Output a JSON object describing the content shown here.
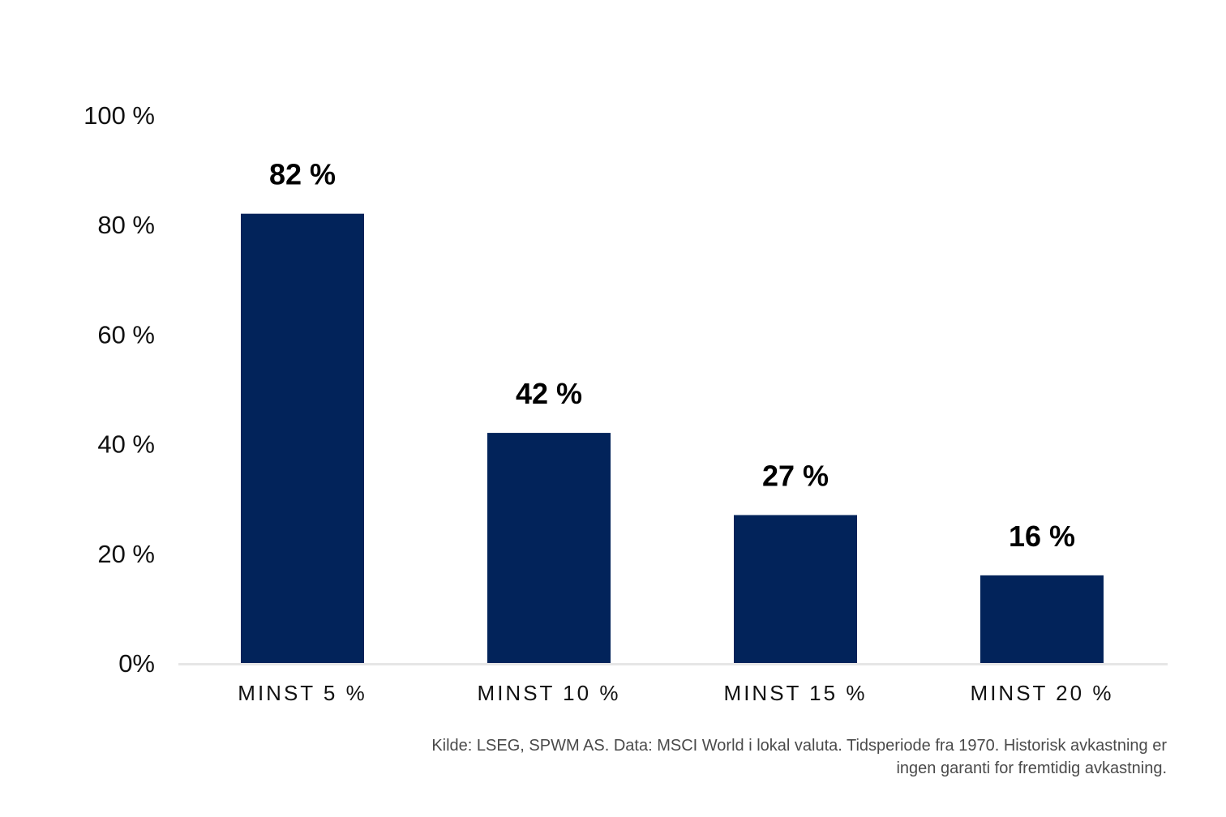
{
  "chart_data": {
    "type": "bar",
    "categories": [
      "MINST 5 %",
      "MINST 10 %",
      "MINST 15 %",
      "MINST 20 %"
    ],
    "values": [
      82,
      42,
      27,
      16
    ],
    "value_labels": [
      "82 %",
      "42 %",
      "27 %",
      "16 %"
    ],
    "yticks": [
      0,
      20,
      40,
      60,
      80,
      100
    ],
    "ytick_labels": [
      "0%",
      "20 %",
      "40 %",
      "60 %",
      "80 %",
      "100 %"
    ],
    "ylim": [
      0,
      100
    ],
    "grid": false,
    "legend": "none",
    "bar_color": "#02235A",
    "axis_color": "#e6e6e6"
  },
  "footnote": {
    "line1": "Kilde: LSEG, SPWM AS. Data: MSCI World i lokal valuta. Tidsperiode fra 1970. Historisk avkastning er",
    "line2": "ingen garanti for fremtidig avkastning."
  }
}
